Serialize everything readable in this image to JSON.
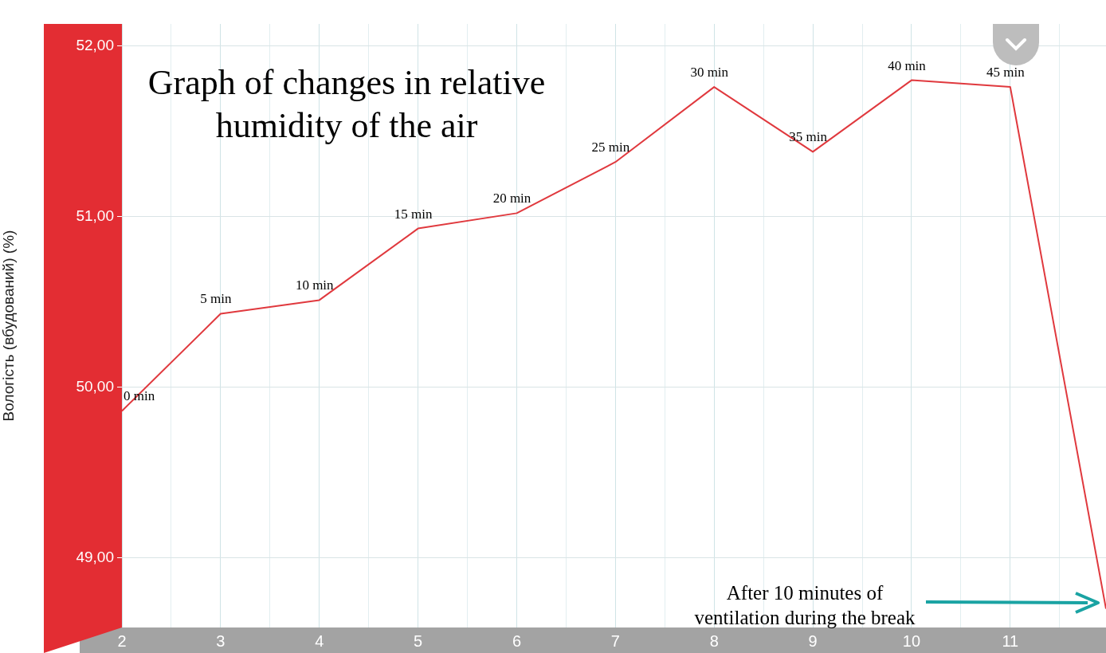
{
  "chart_data": {
    "type": "line",
    "title": "Graph of changes in relative humidity of the air",
    "ylabel": "Вологість (вбудований) (%)",
    "x": [
      2,
      3,
      4,
      5,
      6,
      7,
      8,
      9,
      10,
      11,
      11.97
    ],
    "series": [
      {
        "color": "#e0393e",
        "values": [
          49.86,
          50.43,
          50.51,
          50.93,
          51.02,
          51.32,
          51.76,
          51.38,
          51.8,
          51.76,
          48.7
        ]
      }
    ],
    "xlim": [
      2,
      11.97
    ],
    "xticks": [
      2,
      {
        "value": 2.5,
        "label": null
      },
      3,
      {
        "value": 3.5,
        "label": null
      },
      4,
      {
        "value": 4.5,
        "label": null
      },
      5,
      {
        "value": 5.5,
        "label": null
      },
      6,
      {
        "value": 6.5,
        "label": null
      },
      7,
      {
        "value": 7.5,
        "label": null
      },
      8,
      {
        "value": 8.5,
        "label": null
      },
      9,
      {
        "value": 9.5,
        "label": null
      },
      10,
      {
        "value": 10.5,
        "label": null
      },
      11,
      {
        "value": 11.5,
        "label": null
      }
    ],
    "ylim": [
      48.59,
      52.13
    ],
    "yticks": [
      {
        "value": 49,
        "label": "49,00"
      },
      {
        "value": 50,
        "label": "50,00"
      },
      {
        "value": 51,
        "label": "51,00"
      },
      {
        "value": 52,
        "label": "52,00"
      }
    ],
    "grid": true,
    "marker": "none",
    "line_style": "solid",
    "annotations": [
      {
        "text": "0 min",
        "x": 2,
        "y": 49.86
      },
      {
        "text": "5 min",
        "x": 3,
        "y": 50.43
      },
      {
        "text": "10 min",
        "x": 4,
        "y": 50.51
      },
      {
        "text": "15 min",
        "x": 5,
        "y": 50.93
      },
      {
        "text": "20 min",
        "x": 6,
        "y": 51.02
      },
      {
        "text": "25 min",
        "x": 7,
        "y": 51.32
      },
      {
        "text": "30 min",
        "x": 8,
        "y": 51.76
      },
      {
        "text": "35 min",
        "x": 9,
        "y": 51.38
      },
      {
        "text": "40 min",
        "x": 10,
        "y": 51.8
      },
      {
        "text": "45 min",
        "x": 11,
        "y": 51.76
      },
      "After 10 minutes of ventilation during the break"
    ]
  }
}
